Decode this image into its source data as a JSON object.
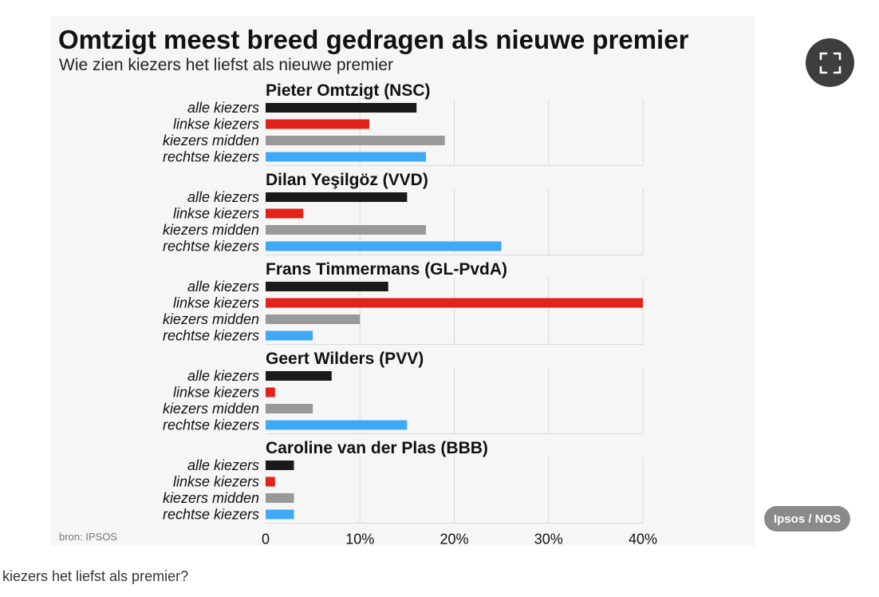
{
  "chart_data": {
    "type": "bar",
    "orientation": "horizontal",
    "title": "Omtzigt meest breed gedragen als nieuwe premier",
    "subtitle": "Wie zien kiezers het liefst als nieuwe premier",
    "source": "bron: IPSOS",
    "categories": [
      "alle kiezers",
      "linkse kiezers",
      "kiezers midden",
      "rechtse kiezers"
    ],
    "category_colors": [
      "#1a1a1a",
      "#e2231a",
      "#999999",
      "#3fa9f5"
    ],
    "x_ticks": [
      "0",
      "10%",
      "20%",
      "30%",
      "40%"
    ],
    "xlim": [
      0,
      40
    ],
    "grid": true,
    "groups": [
      {
        "name": "Pieter Omtzigt (NSC)",
        "values": [
          16,
          11,
          19,
          17
        ]
      },
      {
        "name": "Dilan Yeşilgöz (VVD)",
        "values": [
          15,
          4,
          17,
          25
        ]
      },
      {
        "name": "Frans Timmermans (GL-PvdA)",
        "values": [
          13,
          40,
          10,
          5
        ]
      },
      {
        "name": "Geert Wilders (PVV)",
        "values": [
          7,
          1,
          5,
          15
        ]
      },
      {
        "name": "Caroline van der Plas (BBB)",
        "values": [
          3,
          1,
          3,
          3
        ]
      }
    ]
  },
  "overlay": {
    "credit": "Ipsos / NOS",
    "expand_icon": "expand-icon"
  },
  "caption": "kiezers het liefst als premier?"
}
